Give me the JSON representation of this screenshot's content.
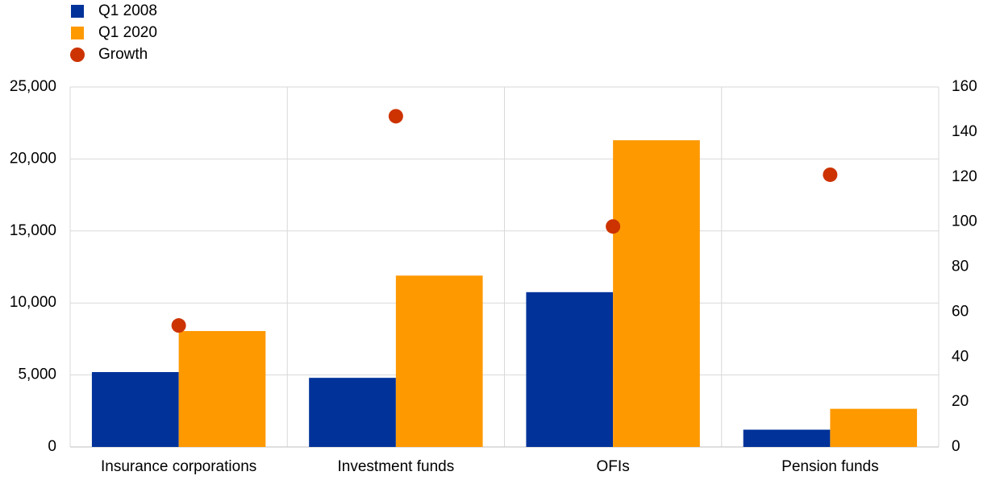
{
  "chart_data": {
    "type": "bar",
    "categories": [
      "Insurance corporations",
      "Investment funds",
      "OFIs",
      "Pension funds"
    ],
    "series": [
      {
        "name": "Q1 2008",
        "color": "#003299",
        "values": [
          5200,
          4800,
          10750,
          1200
        ]
      },
      {
        "name": "Q1 2020",
        "color": "#ff9900",
        "values": [
          8050,
          11900,
          21300,
          2650
        ]
      },
      {
        "name": "Growth",
        "color": "#cc3300",
        "type": "scatter",
        "axis": "y2",
        "values": [
          54,
          147,
          98,
          121
        ]
      }
    ],
    "ylim": [
      0,
      25000
    ],
    "yticks": [
      0,
      {
        "value": 5000,
        "label": "5,000"
      },
      {
        "value": 10000,
        "label": "10,000"
      },
      {
        "value": 15000,
        "label": "15,000"
      },
      {
        "value": 20000,
        "label": "20,000"
      },
      {
        "value": 25000,
        "label": "25,000"
      }
    ],
    "y2lim": [
      0,
      160
    ],
    "y2ticks": [
      0,
      20,
      40,
      60,
      80,
      100,
      120,
      140,
      160
    ],
    "grid": true,
    "legend": "top-left"
  }
}
